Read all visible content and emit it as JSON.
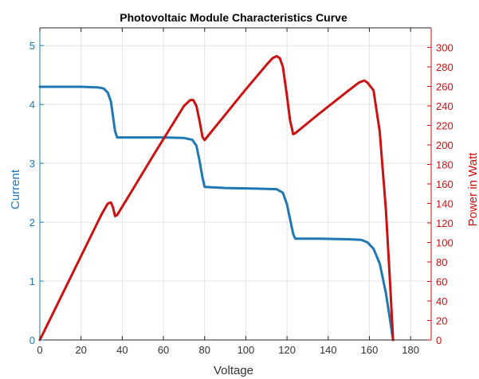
{
  "chart_data": {
    "type": "line",
    "title": "Photovoltaic Module Characteristics Curve",
    "xlabel": "Voltage",
    "ylabel_left": "Current",
    "ylabel_right": "Power in Watt",
    "xlim": [
      0,
      190
    ],
    "ylim_left": [
      0,
      5.3
    ],
    "ylim_right": [
      0,
      320
    ],
    "x_ticks": [
      "0",
      "20",
      "40",
      "60",
      "80",
      "100",
      "120",
      "140",
      "160",
      "180"
    ],
    "y_left_ticks": [
      "0",
      "1",
      "2",
      "3",
      "4",
      "5"
    ],
    "y_right_ticks": [
      "0",
      "20",
      "40",
      "60",
      "80",
      "100",
      "120",
      "140",
      "160",
      "180",
      "200",
      "220",
      "240",
      "260",
      "280",
      "300"
    ],
    "grid": true,
    "colors": {
      "current": "#1f77b4",
      "power": "#cc1111",
      "left_axis": "#1f77b4",
      "right_axis": "#cc1111",
      "grid": "#e3e3e3"
    },
    "series": [
      {
        "axis": "left",
        "color": "#1f77b4",
        "x": [
          0,
          10,
          20,
          28,
          31,
          33,
          34.5,
          35.5,
          36.5,
          37.5,
          45,
          60,
          70,
          74,
          76,
          77.5,
          79,
          80,
          90,
          105,
          115,
          118,
          120,
          121.5,
          123,
          124,
          135,
          150,
          156,
          159,
          162,
          165,
          168,
          170,
          171.5
        ],
        "y": [
          4.3,
          4.3,
          4.3,
          4.29,
          4.27,
          4.2,
          4.05,
          3.8,
          3.55,
          3.44,
          3.44,
          3.44,
          3.43,
          3.4,
          3.3,
          3.05,
          2.75,
          2.6,
          2.58,
          2.57,
          2.56,
          2.5,
          2.3,
          2.05,
          1.8,
          1.72,
          1.72,
          1.71,
          1.7,
          1.66,
          1.55,
          1.3,
          0.8,
          0.35,
          0
        ]
      },
      {
        "axis": "right",
        "color": "#cc1111",
        "x": [
          0,
          10,
          20,
          30,
          33,
          34.5,
          35.5,
          36.5,
          37.5,
          45,
          55,
          65,
          70,
          73,
          74.5,
          76,
          77.5,
          79,
          80,
          90,
          100,
          110,
          113,
          115,
          116.5,
          118,
          120,
          121.5,
          123,
          124,
          135,
          150,
          155,
          157.5,
          159,
          162,
          165,
          168,
          170,
          171.5
        ],
        "y": [
          0,
          43,
          86,
          129,
          140,
          141,
          136,
          127,
          128,
          154,
          189,
          223,
          240,
          246,
          246,
          240,
          225,
          208,
          205,
          231,
          257,
          282,
          289,
          291,
          289,
          280,
          250,
          225,
          211,
          212,
          231,
          256,
          264,
          266,
          264,
          256,
          214,
          134,
          60,
          0
        ]
      }
    ]
  }
}
